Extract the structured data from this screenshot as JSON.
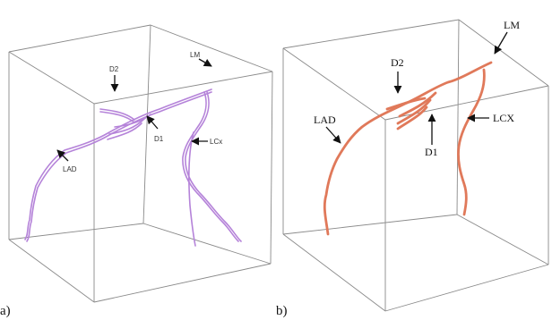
{
  "panel_a": {
    "label": "a)",
    "vessel_color": "#b583d9",
    "annotations": {
      "lad": "LAD",
      "d2": "D2",
      "d1": "D1",
      "lcx": "LCx",
      "lm": "LM"
    }
  },
  "panel_b": {
    "label": "b)",
    "vessel_color": "#e0795a",
    "annotations": {
      "lad": "LAD",
      "d2": "D2",
      "d1": "D1",
      "lcx": "LCX",
      "lm": "LM"
    }
  }
}
